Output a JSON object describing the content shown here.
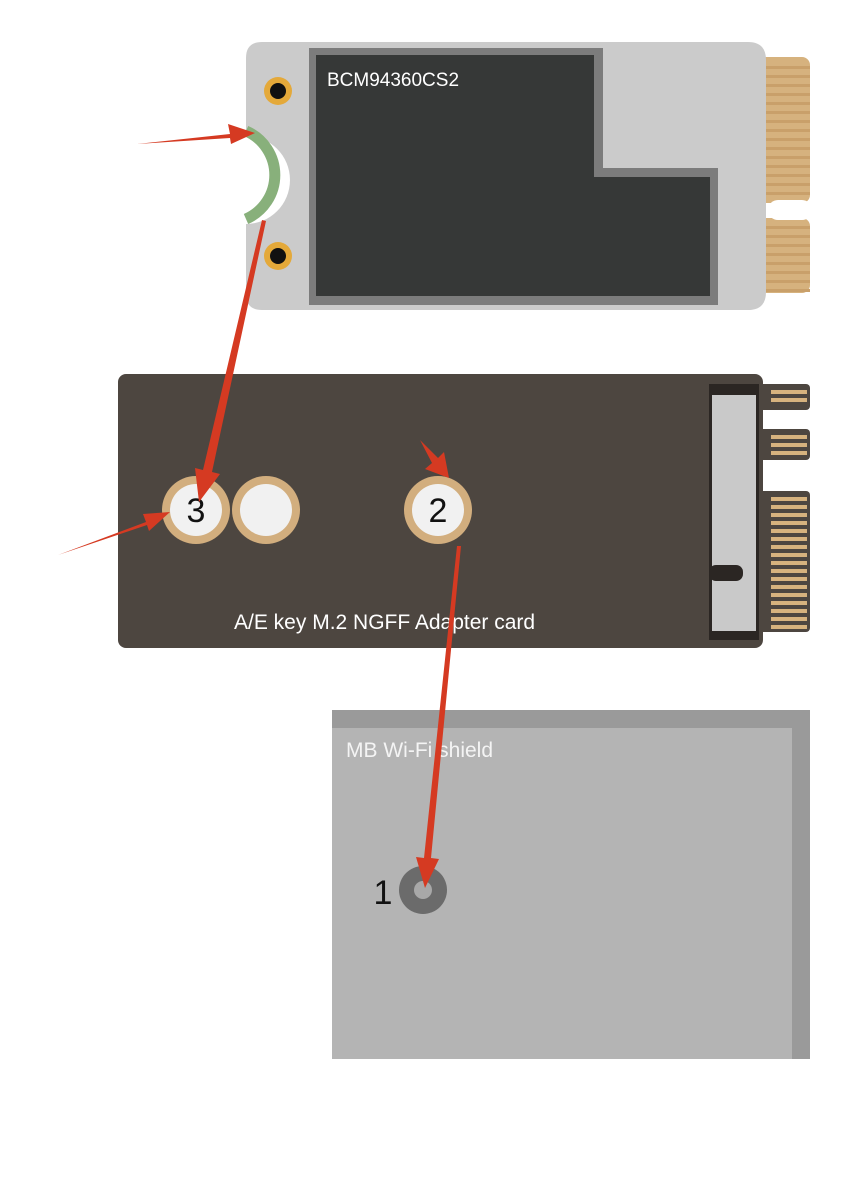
{
  "wifi_card": {
    "label": "BCM94360CS2",
    "colors": {
      "body": "#cbcbcb",
      "chip": "#363837",
      "chip_border": "#7c7c7c",
      "contacts": "#d6b27e",
      "antenna_ring": "#88b07b",
      "screw": "#e4a93a"
    }
  },
  "adapter_card": {
    "label": "A/E key M.2 NGFF Adapter card",
    "colors": {
      "body": "#4d4640",
      "ring": "#d2ae7e",
      "hole": "#f1f1f1",
      "contacts": "#d6b27e",
      "slot": "#c9c9c9"
    }
  },
  "shield": {
    "label": "MB Wi-Fi shield",
    "colors": {
      "body": "#b4b4b4",
      "edge": "#9a9a9a",
      "screw": "#6b6b6b"
    }
  },
  "steps": [
    {
      "number": "1",
      "target": "shield-screw-hole"
    },
    {
      "number": "2",
      "target": "adapter-standoff-2"
    },
    {
      "number": "3",
      "target": "adapter-standoff-3"
    }
  ],
  "arrow_color": "#d53a22"
}
